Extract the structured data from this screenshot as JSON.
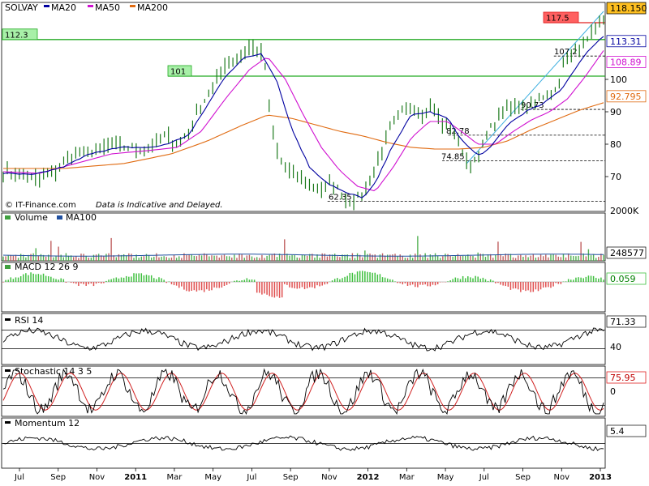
{
  "colors": {
    "background": "#ffffff",
    "price": "#1c7a1c",
    "ma20": "#0000a0",
    "ma50": "#d010d0",
    "ma200": "#e06a10",
    "volume": "#c06060",
    "macd_pos": "#40c040",
    "macd_neg": "#e05050",
    "grid": "#000000",
    "level_green": "#22aa22",
    "level_red": "#e02020",
    "trendline": "#40b0e0",
    "last_price_bg": "#ffc020"
  },
  "chart_data": {
    "type": "line",
    "title": "SOLVAY",
    "legend": [
      "MA20",
      "MA50",
      "MA200"
    ],
    "x_ticks": [
      "Jul",
      "Sep",
      "Nov",
      "2011",
      "Mar",
      "May",
      "Jul",
      "Sep",
      "Nov",
      "2012",
      "Mar",
      "May",
      "Jul",
      "Sep",
      "Nov",
      "2013"
    ],
    "y_ticks": [
      "70",
      "80",
      "90",
      "100"
    ],
    "ylim": [
      60,
      122
    ],
    "value_labels": {
      "last": "118.150",
      "ma20": "113.31",
      "ma50": "108.89",
      "ma200": "92.795"
    },
    "horizontal_levels": [
      {
        "label": "112.3",
        "value": 112.3,
        "color": "green"
      },
      {
        "label": "101",
        "value": 101,
        "color": "green"
      },
      {
        "label": "117.5",
        "value": 117.5,
        "color": "red"
      }
    ],
    "annotations": [
      "62.35",
      "74.85",
      "82.78",
      "90.73",
      "107.2"
    ],
    "price_anchors": [
      [
        0,
        71.5
      ],
      [
        0.03,
        70.5
      ],
      [
        0.06,
        69
      ],
      [
        0.09,
        72
      ],
      [
        0.11,
        76
      ],
      [
        0.13,
        77
      ],
      [
        0.15,
        78
      ],
      [
        0.17,
        79
      ],
      [
        0.19,
        79.5
      ],
      [
        0.21,
        79
      ],
      [
        0.23,
        78.5
      ],
      [
        0.25,
        79.5
      ],
      [
        0.27,
        83
      ],
      [
        0.29,
        80
      ],
      [
        0.31,
        84
      ],
      [
        0.33,
        92
      ],
      [
        0.35,
        98
      ],
      [
        0.37,
        105
      ],
      [
        0.385,
        106
      ],
      [
        0.4,
        108
      ],
      [
        0.41,
        110
      ],
      [
        0.425,
        109
      ],
      [
        0.435,
        106
      ],
      [
        0.445,
        88
      ],
      [
        0.455,
        78
      ],
      [
        0.47,
        72
      ],
      [
        0.49,
        70
      ],
      [
        0.51,
        67
      ],
      [
        0.53,
        66
      ],
      [
        0.55,
        68
      ],
      [
        0.57,
        63
      ],
      [
        0.58,
        62.4
      ],
      [
        0.6,
        64
      ],
      [
        0.62,
        73
      ],
      [
        0.635,
        80
      ],
      [
        0.65,
        87
      ],
      [
        0.665,
        90
      ],
      [
        0.68,
        91
      ],
      [
        0.7,
        89
      ],
      [
        0.715,
        92
      ],
      [
        0.73,
        86
      ],
      [
        0.75,
        84
      ],
      [
        0.765,
        78
      ],
      [
        0.775,
        72
      ],
      [
        0.785,
        75
      ],
      [
        0.8,
        80
      ],
      [
        0.815,
        86
      ],
      [
        0.83,
        90
      ],
      [
        0.85,
        91.5
      ],
      [
        0.87,
        92
      ],
      [
        0.885,
        93
      ],
      [
        0.9,
        94
      ],
      [
        0.915,
        96
      ],
      [
        0.93,
        102
      ],
      [
        0.94,
        107
      ],
      [
        0.955,
        108
      ],
      [
        0.97,
        111
      ],
      [
        0.985,
        115
      ],
      [
        1.0,
        118.15
      ]
    ],
    "ma20_anchors": [
      [
        0,
        71
      ],
      [
        0.05,
        70.5
      ],
      [
        0.1,
        73
      ],
      [
        0.15,
        77.5
      ],
      [
        0.2,
        79
      ],
      [
        0.25,
        79
      ],
      [
        0.28,
        80.5
      ],
      [
        0.31,
        83
      ],
      [
        0.34,
        92
      ],
      [
        0.37,
        101
      ],
      [
        0.4,
        106.5
      ],
      [
        0.43,
        108
      ],
      [
        0.455,
        100
      ],
      [
        0.48,
        85
      ],
      [
        0.51,
        73
      ],
      [
        0.54,
        68
      ],
      [
        0.57,
        65
      ],
      [
        0.6,
        63.5
      ],
      [
        0.62,
        68
      ],
      [
        0.65,
        80
      ],
      [
        0.68,
        89
      ],
      [
        0.71,
        90
      ],
      [
        0.74,
        88
      ],
      [
        0.765,
        81
      ],
      [
        0.79,
        76.5
      ],
      [
        0.81,
        78.5
      ],
      [
        0.84,
        86
      ],
      [
        0.87,
        90
      ],
      [
        0.9,
        92.5
      ],
      [
        0.93,
        97
      ],
      [
        0.955,
        104
      ],
      [
        0.98,
        110
      ],
      [
        1.0,
        113.31
      ]
    ],
    "ma50_anchors": [
      [
        0,
        71.5
      ],
      [
        0.06,
        71
      ],
      [
        0.12,
        74
      ],
      [
        0.18,
        77
      ],
      [
        0.24,
        78
      ],
      [
        0.29,
        79
      ],
      [
        0.33,
        84
      ],
      [
        0.37,
        94
      ],
      [
        0.41,
        103
      ],
      [
        0.44,
        107
      ],
      [
        0.47,
        100
      ],
      [
        0.5,
        89
      ],
      [
        0.53,
        79
      ],
      [
        0.56,
        72
      ],
      [
        0.59,
        67
      ],
      [
        0.62,
        65.5
      ],
      [
        0.65,
        73
      ],
      [
        0.68,
        82
      ],
      [
        0.71,
        87
      ],
      [
        0.74,
        87
      ],
      [
        0.77,
        83
      ],
      [
        0.79,
        80
      ],
      [
        0.82,
        80
      ],
      [
        0.85,
        84
      ],
      [
        0.88,
        87.5
      ],
      [
        0.91,
        90
      ],
      [
        0.94,
        94
      ],
      [
        0.97,
        101
      ],
      [
        1.0,
        108.89
      ]
    ],
    "ma200_anchors": [
      [
        0,
        72.5
      ],
      [
        0.1,
        72.5
      ],
      [
        0.2,
        74
      ],
      [
        0.28,
        77
      ],
      [
        0.34,
        81
      ],
      [
        0.4,
        86
      ],
      [
        0.44,
        89
      ],
      [
        0.48,
        88
      ],
      [
        0.52,
        86
      ],
      [
        0.56,
        84
      ],
      [
        0.6,
        82.5
      ],
      [
        0.64,
        80.5
      ],
      [
        0.68,
        79
      ],
      [
        0.72,
        78.5
      ],
      [
        0.76,
        78.5
      ],
      [
        0.8,
        79
      ],
      [
        0.84,
        81
      ],
      [
        0.88,
        84.5
      ],
      [
        0.92,
        87.5
      ],
      [
        0.96,
        90.5
      ],
      [
        1.0,
        92.795
      ]
    ],
    "footer": {
      "source": "© IT-Finance.com",
      "disclaimer": "Data is Indicative and Delayed."
    },
    "volume": {
      "title": "Volume",
      "ma_label": "MA100",
      "top_label": "2000K",
      "last_value": "248577",
      "ylim": [
        0,
        2000
      ]
    },
    "macd": {
      "title": "MACD 12 26 9",
      "last_value": "0.059"
    },
    "rsi": {
      "title": "RSI 14",
      "y_ticks": [
        "40"
      ],
      "last_value": "71.33",
      "levels": [
        30,
        70
      ]
    },
    "stochastic": {
      "title": "Stochastic 14 3 5",
      "y_ticks": [
        "0"
      ],
      "last_value": "75.95",
      "levels": [
        20,
        80
      ]
    },
    "momentum": {
      "title": "Momentum 12",
      "last_value": "5.4"
    }
  }
}
